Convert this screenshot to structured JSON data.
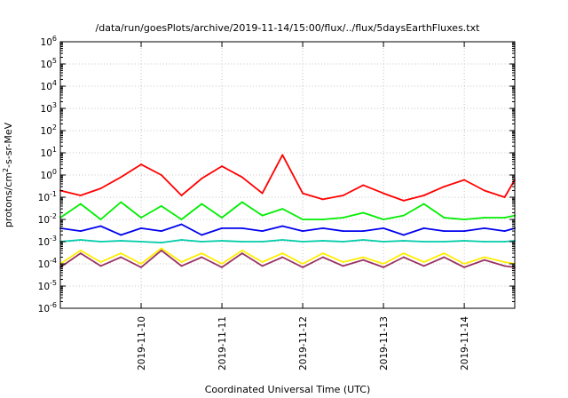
{
  "chart_data": {
    "type": "line",
    "title": "/data/run/goesPlots/archive/2019-11-14/15:00/flux/../flux/5daysEarthFluxes.txt",
    "xlabel": "Coordinated Universal Time (UTC)",
    "ylabel": "protons/cm2-s-sr-MeV",
    "ylabel_parts": {
      "prefix": "protons/cm",
      "superscript": "2",
      "suffix": "-s-sr-MeV"
    },
    "yscale": "log",
    "ylim": [
      1e-06,
      1000000.0
    ],
    "yticks": [
      {
        "exp": "-6",
        "value": 1e-06
      },
      {
        "exp": "-5",
        "value": 1e-05
      },
      {
        "exp": "-4",
        "value": 0.0001
      },
      {
        "exp": "-3",
        "value": 0.001
      },
      {
        "exp": "-2",
        "value": 0.01
      },
      {
        "exp": "-1",
        "value": 0.1
      },
      {
        "exp": "0",
        "value": 1
      },
      {
        "exp": "1",
        "value": 10
      },
      {
        "exp": "2",
        "value": 100
      },
      {
        "exp": "3",
        "value": 1000
      },
      {
        "exp": "4",
        "value": 10000
      },
      {
        "exp": "5",
        "value": 100000
      },
      {
        "exp": "6",
        "value": 1000000
      }
    ],
    "ytick_base": "10",
    "xlim": [
      "2019-11-09T00:00",
      "2019-11-14T15:00"
    ],
    "xticks": [
      {
        "label": "2019-11-10",
        "t": "2019-11-10T00:00"
      },
      {
        "label": "2019-11-11",
        "t": "2019-11-11T00:00"
      },
      {
        "label": "2019-11-12",
        "t": "2019-11-12T00:00"
      },
      {
        "label": "2019-11-13",
        "t": "2019-11-13T00:00"
      },
      {
        "label": "2019-11-14",
        "t": "2019-11-14T00:00"
      }
    ],
    "grid": true,
    "legend": "none",
    "series": [
      {
        "color": "#ff0000",
        "x": [
          "2019-11-09T00:00",
          "2019-11-09T06:00",
          "2019-11-09T12:00",
          "2019-11-09T18:00",
          "2019-11-10T00:00",
          "2019-11-10T06:00",
          "2019-11-10T12:00",
          "2019-11-10T18:00",
          "2019-11-11T00:00",
          "2019-11-11T06:00",
          "2019-11-11T12:00",
          "2019-11-11T18:00",
          "2019-11-12T00:00",
          "2019-11-12T06:00",
          "2019-11-12T12:00",
          "2019-11-12T18:00",
          "2019-11-13T00:00",
          "2019-11-13T06:00",
          "2019-11-13T12:00",
          "2019-11-13T18:00",
          "2019-11-14T00:00",
          "2019-11-14T06:00",
          "2019-11-14T12:00",
          "2019-11-14T15:00"
        ],
        "y": [
          0.2,
          0.12,
          0.25,
          0.8,
          3.0,
          1.0,
          0.12,
          0.7,
          2.5,
          0.8,
          0.15,
          8.0,
          0.15,
          0.08,
          0.12,
          0.35,
          0.15,
          0.07,
          0.12,
          0.3,
          0.6,
          0.2,
          0.1,
          0.6
        ]
      },
      {
        "color": "#00ee00",
        "x": [
          "2019-11-09T00:00",
          "2019-11-09T06:00",
          "2019-11-09T12:00",
          "2019-11-09T18:00",
          "2019-11-10T00:00",
          "2019-11-10T06:00",
          "2019-11-10T12:00",
          "2019-11-10T18:00",
          "2019-11-11T00:00",
          "2019-11-11T06:00",
          "2019-11-11T12:00",
          "2019-11-11T18:00",
          "2019-11-12T00:00",
          "2019-11-12T06:00",
          "2019-11-12T12:00",
          "2019-11-12T18:00",
          "2019-11-13T00:00",
          "2019-11-13T06:00",
          "2019-11-13T12:00",
          "2019-11-13T18:00",
          "2019-11-14T00:00",
          "2019-11-14T06:00",
          "2019-11-14T12:00",
          "2019-11-14T15:00"
        ],
        "y": [
          0.012,
          0.05,
          0.01,
          0.06,
          0.012,
          0.04,
          0.01,
          0.05,
          0.012,
          0.06,
          0.015,
          0.03,
          0.01,
          0.01,
          0.012,
          0.02,
          0.01,
          0.015,
          0.05,
          0.012,
          0.01,
          0.012,
          0.012,
          0.015
        ]
      },
      {
        "color": "#0000ee",
        "x": [
          "2019-11-09T00:00",
          "2019-11-09T06:00",
          "2019-11-09T12:00",
          "2019-11-09T18:00",
          "2019-11-10T00:00",
          "2019-11-10T06:00",
          "2019-11-10T12:00",
          "2019-11-10T18:00",
          "2019-11-11T00:00",
          "2019-11-11T06:00",
          "2019-11-11T12:00",
          "2019-11-11T18:00",
          "2019-11-12T00:00",
          "2019-11-12T06:00",
          "2019-11-12T12:00",
          "2019-11-12T18:00",
          "2019-11-13T00:00",
          "2019-11-13T06:00",
          "2019-11-13T12:00",
          "2019-11-13T18:00",
          "2019-11-14T00:00",
          "2019-11-14T06:00",
          "2019-11-14T12:00",
          "2019-11-14T15:00"
        ],
        "y": [
          0.004,
          0.003,
          0.005,
          0.002,
          0.004,
          0.003,
          0.006,
          0.002,
          0.004,
          0.004,
          0.003,
          0.005,
          0.003,
          0.004,
          0.003,
          0.003,
          0.004,
          0.002,
          0.004,
          0.003,
          0.003,
          0.004,
          0.003,
          0.004
        ]
      },
      {
        "color": "#00ccaa",
        "x": [
          "2019-11-09T00:00",
          "2019-11-09T06:00",
          "2019-11-09T12:00",
          "2019-11-09T18:00",
          "2019-11-10T00:00",
          "2019-11-10T06:00",
          "2019-11-10T12:00",
          "2019-11-10T18:00",
          "2019-11-11T00:00",
          "2019-11-11T06:00",
          "2019-11-11T12:00",
          "2019-11-11T18:00",
          "2019-11-12T00:00",
          "2019-11-12T06:00",
          "2019-11-12T12:00",
          "2019-11-12T18:00",
          "2019-11-13T00:00",
          "2019-11-13T06:00",
          "2019-11-13T12:00",
          "2019-11-13T18:00",
          "2019-11-14T00:00",
          "2019-11-14T06:00",
          "2019-11-14T12:00",
          "2019-11-14T15:00"
        ],
        "y": [
          0.001,
          0.0012,
          0.001,
          0.0011,
          0.001,
          0.0009,
          0.0012,
          0.001,
          0.0011,
          0.001,
          0.001,
          0.0012,
          0.001,
          0.0011,
          0.001,
          0.0012,
          0.001,
          0.0011,
          0.001,
          0.001,
          0.0011,
          0.001,
          0.001,
          0.0011
        ]
      },
      {
        "color": "#ffee00",
        "x": [
          "2019-11-09T00:00",
          "2019-11-09T06:00",
          "2019-11-09T12:00",
          "2019-11-09T18:00",
          "2019-11-10T00:00",
          "2019-11-10T06:00",
          "2019-11-10T12:00",
          "2019-11-10T18:00",
          "2019-11-11T00:00",
          "2019-11-11T06:00",
          "2019-11-11T12:00",
          "2019-11-11T18:00",
          "2019-11-12T00:00",
          "2019-11-12T06:00",
          "2019-11-12T12:00",
          "2019-11-12T18:00",
          "2019-11-13T00:00",
          "2019-11-13T06:00",
          "2019-11-13T12:00",
          "2019-11-13T18:00",
          "2019-11-14T00:00",
          "2019-11-14T06:00",
          "2019-11-14T12:00",
          "2019-11-14T15:00"
        ],
        "y": [
          0.0001,
          0.0004,
          0.00012,
          0.0003,
          0.0001,
          0.0005,
          0.00012,
          0.0003,
          0.0001,
          0.0004,
          0.00012,
          0.0003,
          0.0001,
          0.0003,
          0.00012,
          0.0002,
          0.0001,
          0.0003,
          0.00012,
          0.0003,
          0.0001,
          0.0002,
          0.00012,
          0.0001
        ]
      },
      {
        "color": "#993366",
        "x": [
          "2019-11-09T00:00",
          "2019-11-09T06:00",
          "2019-11-09T12:00",
          "2019-11-09T18:00",
          "2019-11-10T00:00",
          "2019-11-10T06:00",
          "2019-11-10T12:00",
          "2019-11-10T18:00",
          "2019-11-11T00:00",
          "2019-11-11T06:00",
          "2019-11-11T12:00",
          "2019-11-11T18:00",
          "2019-11-12T00:00",
          "2019-11-12T06:00",
          "2019-11-12T12:00",
          "2019-11-12T18:00",
          "2019-11-13T00:00",
          "2019-11-13T06:00",
          "2019-11-13T12:00",
          "2019-11-13T18:00",
          "2019-11-14T00:00",
          "2019-11-14T06:00",
          "2019-11-14T12:00",
          "2019-11-14T15:00"
        ],
        "y": [
          7e-05,
          0.0003,
          8e-05,
          0.0002,
          7e-05,
          0.0004,
          8e-05,
          0.0002,
          7e-05,
          0.0003,
          8e-05,
          0.0002,
          7e-05,
          0.0002,
          8e-05,
          0.00015,
          7e-05,
          0.0002,
          8e-05,
          0.0002,
          7e-05,
          0.00015,
          8e-05,
          7e-05
        ]
      }
    ]
  }
}
